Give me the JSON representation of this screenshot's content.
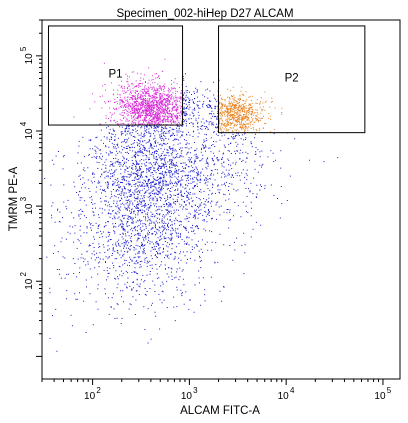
{
  "chart_data": {
    "type": "scatter",
    "title": "Specimen_002-hiHep D27 ALCAM",
    "xlabel": "ALCAM FITC-A",
    "ylabel": "TMRM PE-A",
    "x_scale": "log",
    "y_scale": "log",
    "xlim": [
      30,
      150000
    ],
    "ylim": [
      5,
      300000
    ],
    "x_ticks": [
      {
        "value": 100,
        "base": "10",
        "exp": "2"
      },
      {
        "value": 1000,
        "base": "10",
        "exp": "3"
      },
      {
        "value": 10000,
        "base": "10",
        "exp": "4"
      },
      {
        "value": 100000,
        "base": "10",
        "exp": "5"
      }
    ],
    "y_ticks": [
      {
        "value": 100,
        "base": "10",
        "exp": "2"
      },
      {
        "value": 1000,
        "base": "10",
        "exp": "3"
      },
      {
        "value": 10000,
        "base": "10",
        "exp": "4"
      },
      {
        "value": 100000,
        "base": "10",
        "exp": "5"
      }
    ],
    "gates": [
      {
        "name": "P1",
        "x_range": [
          35,
          850
        ],
        "y_range": [
          12000,
          250000
        ],
        "color": "#d82cd8"
      },
      {
        "name": "P2",
        "x_range": [
          2000,
          65000
        ],
        "y_range": [
          9500,
          250000
        ],
        "color": "#e8821e"
      }
    ],
    "populations": [
      {
        "gate": "none",
        "color": "#1a1acd"
      },
      {
        "gate": "P1",
        "color": "#d82cd8"
      },
      {
        "gate": "P2",
        "color": "#e8821e"
      }
    ],
    "colors": {
      "axis": "#000000",
      "gate_border": "#000000",
      "background": "#ffffff"
    }
  }
}
